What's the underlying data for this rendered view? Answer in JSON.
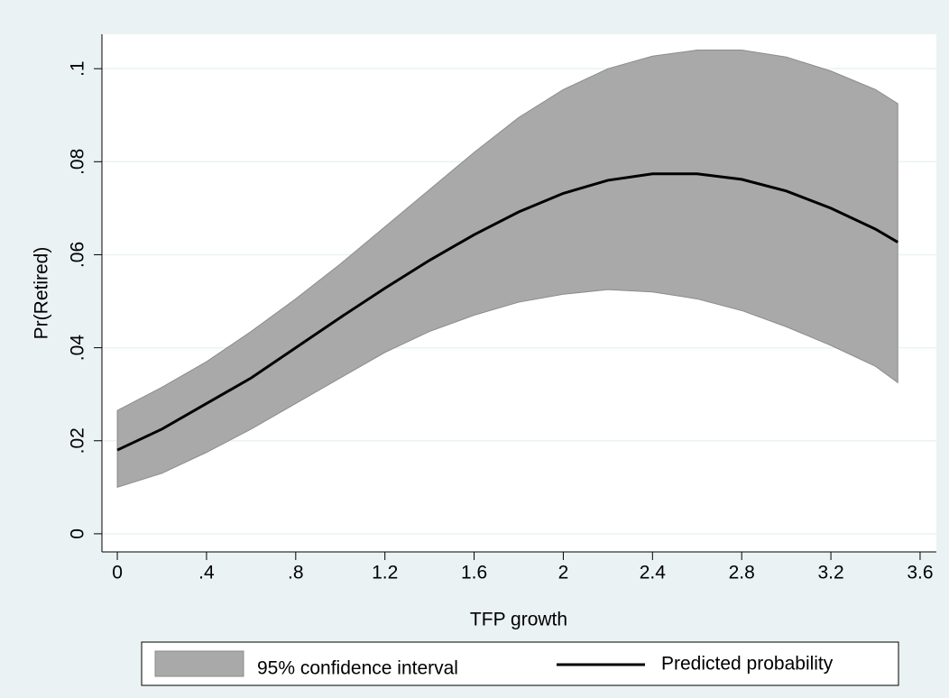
{
  "chart_data": {
    "type": "line-band",
    "x_label": "TFP growth",
    "y_label": "Pr(Retired)",
    "x": [
      0,
      0.2,
      0.4,
      0.6,
      0.8,
      1.0,
      1.2,
      1.4,
      1.6,
      1.8,
      2.0,
      2.2,
      2.4,
      2.6,
      2.8,
      3.0,
      3.2,
      3.4,
      3.5
    ],
    "series": [
      {
        "name": "95% confidence interval",
        "color": "#a9a9a9",
        "upper": [
          0.0265,
          0.0315,
          0.037,
          0.0435,
          0.0505,
          0.058,
          0.066,
          0.074,
          0.082,
          0.0895,
          0.0955,
          0.1,
          0.1027,
          0.104,
          0.104,
          0.1025,
          0.0995,
          0.0955,
          0.0925
        ],
        "lower": [
          0.01,
          0.013,
          0.0175,
          0.0225,
          0.028,
          0.0335,
          0.039,
          0.0435,
          0.047,
          0.0498,
          0.0515,
          0.0525,
          0.052,
          0.0505,
          0.048,
          0.0445,
          0.0405,
          0.036,
          0.0325
        ]
      },
      {
        "name": "Predicted probability",
        "color": "#000000",
        "values": [
          0.018,
          0.0225,
          0.028,
          0.0335,
          0.04,
          0.0465,
          0.0528,
          0.0588,
          0.0643,
          0.0692,
          0.0732,
          0.076,
          0.0774,
          0.0774,
          0.0762,
          0.0737,
          0.07,
          0.0655,
          0.0627
        ]
      }
    ],
    "xlim": [
      -0.069,
      3.673
    ],
    "ylim": [
      -0.0039,
      0.1074
    ],
    "xticks": [
      0,
      {
        "value": 0.4,
        "label": ".4"
      },
      {
        "value": 0.8,
        "label": ".8"
      },
      1.2,
      1.6,
      2,
      2.4,
      2.8,
      3.2,
      3.6
    ],
    "yticks": [
      0,
      {
        "value": 0.02,
        "label": ".02"
      },
      {
        "value": 0.04,
        "label": ".04"
      },
      {
        "value": 0.06,
        "label": ".06"
      },
      {
        "value": 0.08,
        "label": ".08"
      },
      {
        "value": 0.1,
        "label": ".1"
      }
    ],
    "grid": true
  }
}
